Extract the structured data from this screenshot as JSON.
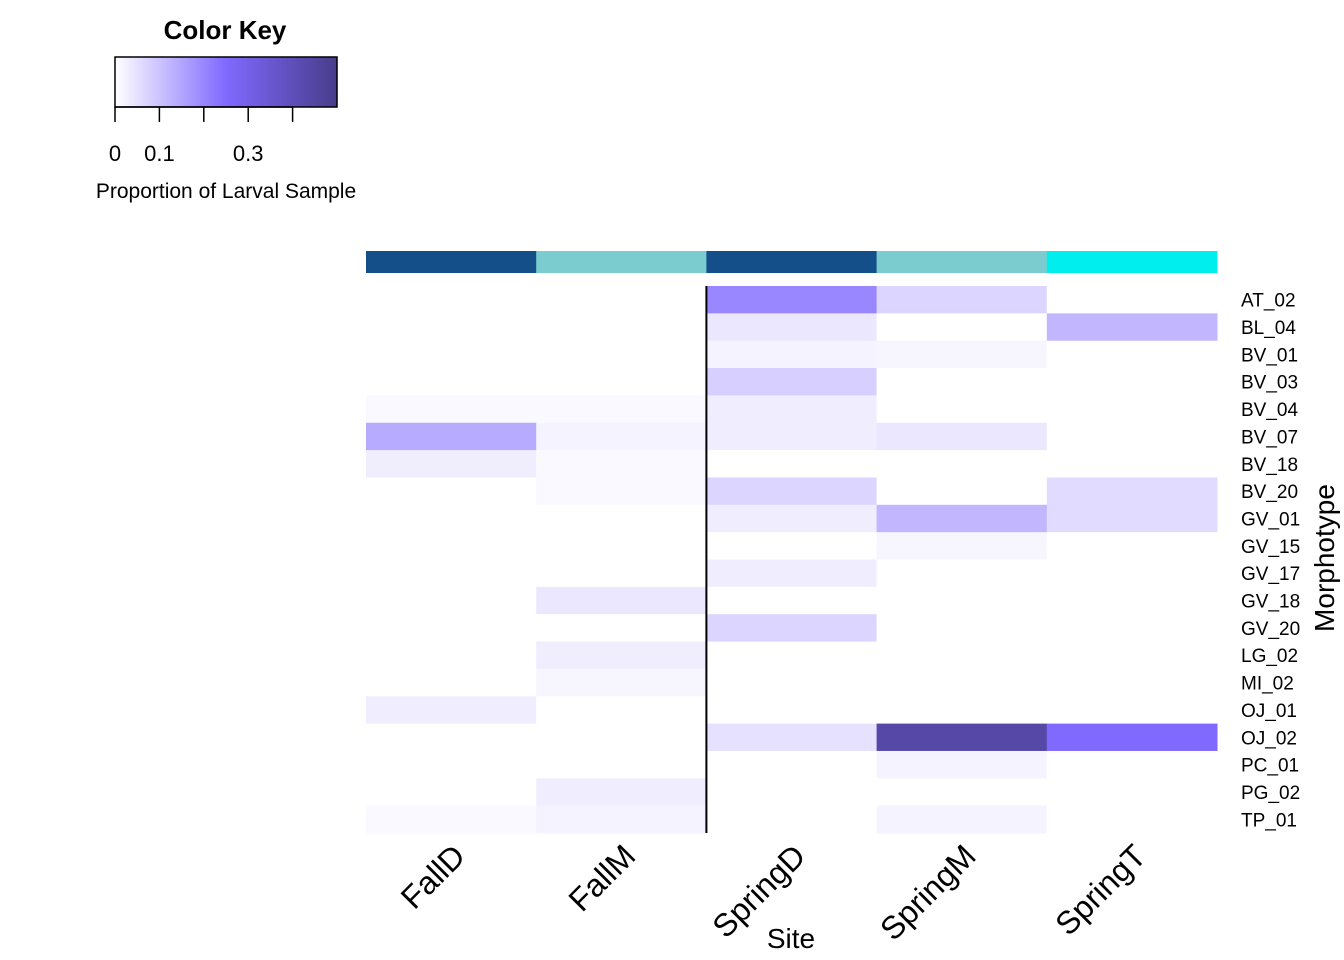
{
  "chart_data": {
    "type": "heatmap",
    "title": "",
    "xlabel": "Site",
    "ylabel": "Morphotype",
    "columns": [
      "FallD",
      "FallM",
      "SpringD",
      "SpringM",
      "SpringT"
    ],
    "column_group_colors": [
      "#154f8a",
      "#7accce",
      "#154f8a",
      "#7accce",
      "#00eeee"
    ],
    "rows": [
      "AT_02",
      "BL_04",
      "BV_01",
      "BV_03",
      "BV_04",
      "BV_07",
      "BV_18",
      "BV_20",
      "GV_01",
      "GV_15",
      "GV_17",
      "GV_18",
      "GV_20",
      "LG_02",
      "MI_02",
      "OJ_01",
      "OJ_02",
      "PC_01",
      "PG_02",
      "TP_01"
    ],
    "values": [
      [
        0.0,
        0.0,
        0.2,
        0.07,
        0.0
      ],
      [
        0.0,
        0.0,
        0.04,
        0.0,
        0.12
      ],
      [
        0.0,
        0.0,
        0.02,
        0.015,
        0.0
      ],
      [
        0.0,
        0.0,
        0.08,
        0.0,
        0.0
      ],
      [
        0.01,
        0.01,
        0.03,
        0.0,
        0.0
      ],
      [
        0.14,
        0.02,
        0.03,
        0.04,
        0.0
      ],
      [
        0.03,
        0.01,
        0.0,
        0.0,
        0.0
      ],
      [
        0.0,
        0.01,
        0.07,
        0.0,
        0.06
      ],
      [
        0.0,
        0.0,
        0.03,
        0.12,
        0.06
      ],
      [
        0.0,
        0.0,
        0.0,
        0.015,
        0.0
      ],
      [
        0.0,
        0.0,
        0.03,
        0.0,
        0.0
      ],
      [
        0.0,
        0.04,
        0.0,
        0.0,
        0.0
      ],
      [
        0.0,
        0.0,
        0.07,
        0.0,
        0.0
      ],
      [
        0.0,
        0.03,
        0.0,
        0.0,
        0.0
      ],
      [
        0.0,
        0.015,
        0.0,
        0.0,
        0.0
      ],
      [
        0.03,
        0.0,
        0.0,
        0.0,
        0.0
      ],
      [
        0.0,
        0.0,
        0.05,
        0.44,
        0.25
      ],
      [
        0.0,
        0.0,
        0.0,
        0.02,
        0.0
      ],
      [
        0.0,
        0.03,
        0.0,
        0.0,
        0.0
      ],
      [
        0.01,
        0.02,
        0.0,
        0.02,
        0.0
      ]
    ],
    "color_key": {
      "title": "Color Key",
      "label": "Proportion of Larval Sample",
      "range": [
        0,
        0.5
      ],
      "tick_labels": [
        "0",
        "0.1",
        "0.3"
      ],
      "tick_values": [
        0,
        0.1,
        0.3
      ],
      "unlabeled_ticks": [
        0.2,
        0.4
      ],
      "colors": [
        "#ffffff",
        "#7f69ff",
        "#483d8b"
      ]
    },
    "column_separator_after": "FallM"
  }
}
